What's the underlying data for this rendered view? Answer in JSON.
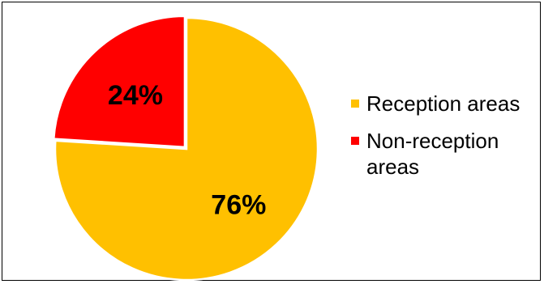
{
  "chart_data": {
    "type": "pie",
    "slices": [
      {
        "name": "Reception areas",
        "value": 76,
        "label": "76%",
        "color": "#FFC000"
      },
      {
        "name": "Non-reception areas",
        "value": 24,
        "label": "24%",
        "color": "#FF0000"
      }
    ],
    "legend": {
      "position": "right",
      "items": [
        {
          "text": "Reception areas",
          "color": "#FFC000"
        },
        {
          "text": "Non-reception areas",
          "color": "#FF0000"
        }
      ]
    }
  }
}
